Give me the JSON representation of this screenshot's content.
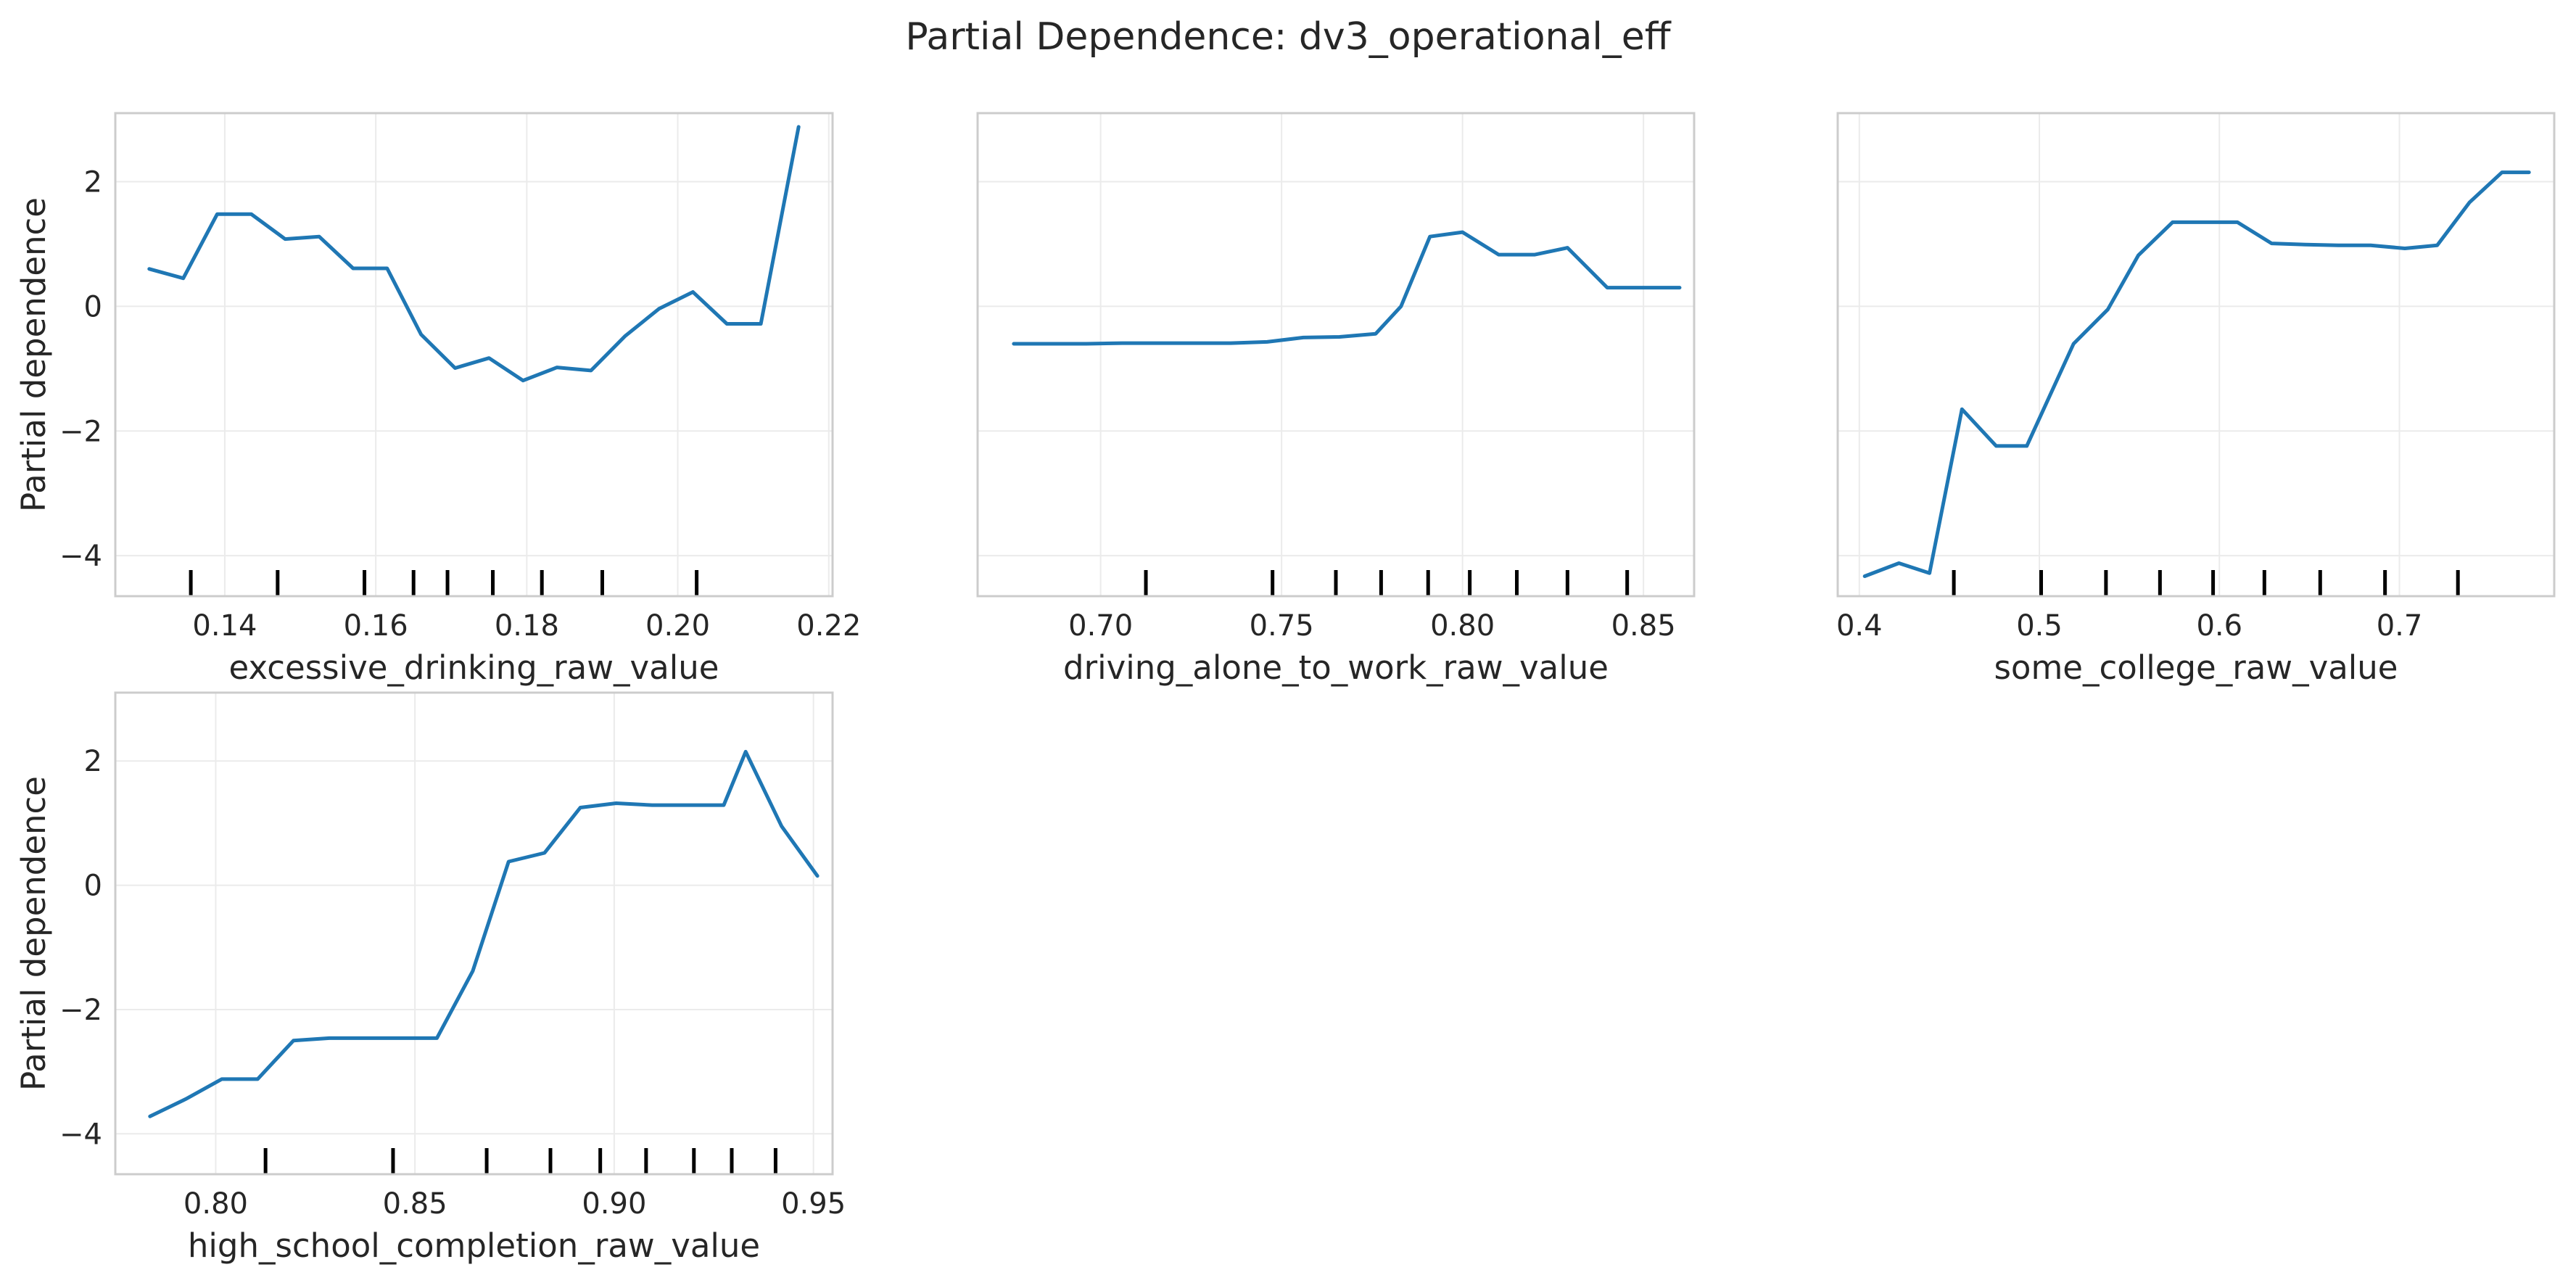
{
  "chart_data": {
    "type": "line",
    "title": "Partial Dependence: dv3_operational_eff",
    "shared_y": true,
    "ylim": [
      -4.65,
      3.1
    ],
    "yticks": [
      -4,
      -2,
      0,
      2
    ],
    "ylabel": "Partial dependence",
    "grid": true,
    "panels": [
      {
        "xlabel": "excessive_drinking_raw_value",
        "xlim": [
          0.1255,
          0.2205
        ],
        "xticks": [
          0.14,
          0.16,
          0.18,
          0.2,
          0.22
        ],
        "xtick_labels": [
          "0.14",
          "0.16",
          "0.18",
          "0.20",
          "0.22"
        ],
        "ylabel": "Partial dependence",
        "show_yticks": true,
        "deciles": [
          0.1355,
          0.147,
          0.1585,
          0.165,
          0.1695,
          0.1755,
          0.182,
          0.19,
          0.2025
        ],
        "x": [
          0.13,
          0.1345,
          0.139,
          0.1435,
          0.148,
          0.1525,
          0.157,
          0.1615,
          0.166,
          0.1705,
          0.175,
          0.1795,
          0.184,
          0.1885,
          0.193,
          0.1975,
          0.202,
          0.2065,
          0.211,
          0.216
        ],
        "y": [
          0.6,
          0.45,
          1.48,
          1.48,
          1.08,
          1.12,
          0.61,
          0.61,
          -0.45,
          -0.99,
          -0.83,
          -1.19,
          -0.98,
          -1.03,
          -0.48,
          -0.04,
          0.23,
          -0.28,
          -0.28,
          2.88
        ]
      },
      {
        "xlabel": "driving_alone_to_work_raw_value",
        "xlim": [
          0.666,
          0.864
        ],
        "xticks": [
          0.7,
          0.75,
          0.8,
          0.85
        ],
        "xtick_labels": [
          "0.70",
          "0.75",
          "0.80",
          "0.85"
        ],
        "ylabel": "",
        "show_yticks": false,
        "deciles": [
          0.7125,
          0.7475,
          0.765,
          0.7775,
          0.7905,
          0.802,
          0.815,
          0.829,
          0.8455
        ],
        "x": [
          0.676,
          0.686,
          0.696,
          0.706,
          0.716,
          0.726,
          0.736,
          0.746,
          0.756,
          0.766,
          0.776,
          0.783,
          0.791,
          0.8,
          0.81,
          0.82,
          0.829,
          0.84,
          0.85,
          0.86
        ],
        "y": [
          -0.6,
          -0.6,
          -0.6,
          -0.59,
          -0.59,
          -0.59,
          -0.59,
          -0.57,
          -0.5,
          -0.49,
          -0.44,
          0.0,
          1.12,
          1.19,
          0.83,
          0.83,
          0.94,
          0.3,
          0.3,
          0.3
        ]
      },
      {
        "xlabel": "some_college_raw_value",
        "xlim": [
          0.388,
          0.786
        ],
        "xticks": [
          0.4,
          0.5,
          0.6,
          0.7
        ],
        "xtick_labels": [
          "0.4",
          "0.5",
          "0.6",
          "0.7"
        ],
        "ylabel": "",
        "show_yticks": false,
        "deciles": [
          0.4525,
          0.501,
          0.537,
          0.567,
          0.5965,
          0.625,
          0.656,
          0.692,
          0.7325
        ],
        "x": [
          0.403,
          0.422,
          0.439,
          0.457,
          0.476,
          0.493,
          0.519,
          0.538,
          0.555,
          0.574,
          0.593,
          0.61,
          0.629,
          0.648,
          0.666,
          0.684,
          0.703,
          0.721,
          0.739,
          0.757,
          0.772
        ],
        "y": [
          -4.33,
          -4.12,
          -4.28,
          -1.65,
          -2.24,
          -2.24,
          -0.6,
          -0.05,
          0.82,
          1.35,
          1.35,
          1.35,
          1.01,
          0.99,
          0.98,
          0.98,
          0.93,
          0.98,
          1.67,
          2.15,
          2.15
        ]
      },
      {
        "xlabel": "high_school_completion_raw_value",
        "xlim": [
          0.7748,
          0.9548
        ],
        "xticks": [
          0.8,
          0.85,
          0.9,
          0.95
        ],
        "xtick_labels": [
          "0.80",
          "0.85",
          "0.90",
          "0.95"
        ],
        "ylabel": "Partial dependence",
        "show_yticks": true,
        "deciles": [
          0.8125,
          0.8445,
          0.868,
          0.884,
          0.8965,
          0.908,
          0.92,
          0.9295,
          0.9405
        ],
        "x": [
          0.7835,
          0.7925,
          0.8015,
          0.8105,
          0.8195,
          0.8285,
          0.8375,
          0.8465,
          0.8555,
          0.8645,
          0.8735,
          0.8825,
          0.8915,
          0.9005,
          0.9095,
          0.9185,
          0.9275,
          0.933,
          0.942,
          0.951
        ],
        "y": [
          -3.72,
          -3.44,
          -3.12,
          -3.12,
          -2.5,
          -2.46,
          -2.46,
          -2.46,
          -2.46,
          -1.38,
          0.38,
          0.52,
          1.25,
          1.32,
          1.29,
          1.29,
          1.29,
          2.15,
          0.95,
          0.15
        ]
      }
    ]
  }
}
